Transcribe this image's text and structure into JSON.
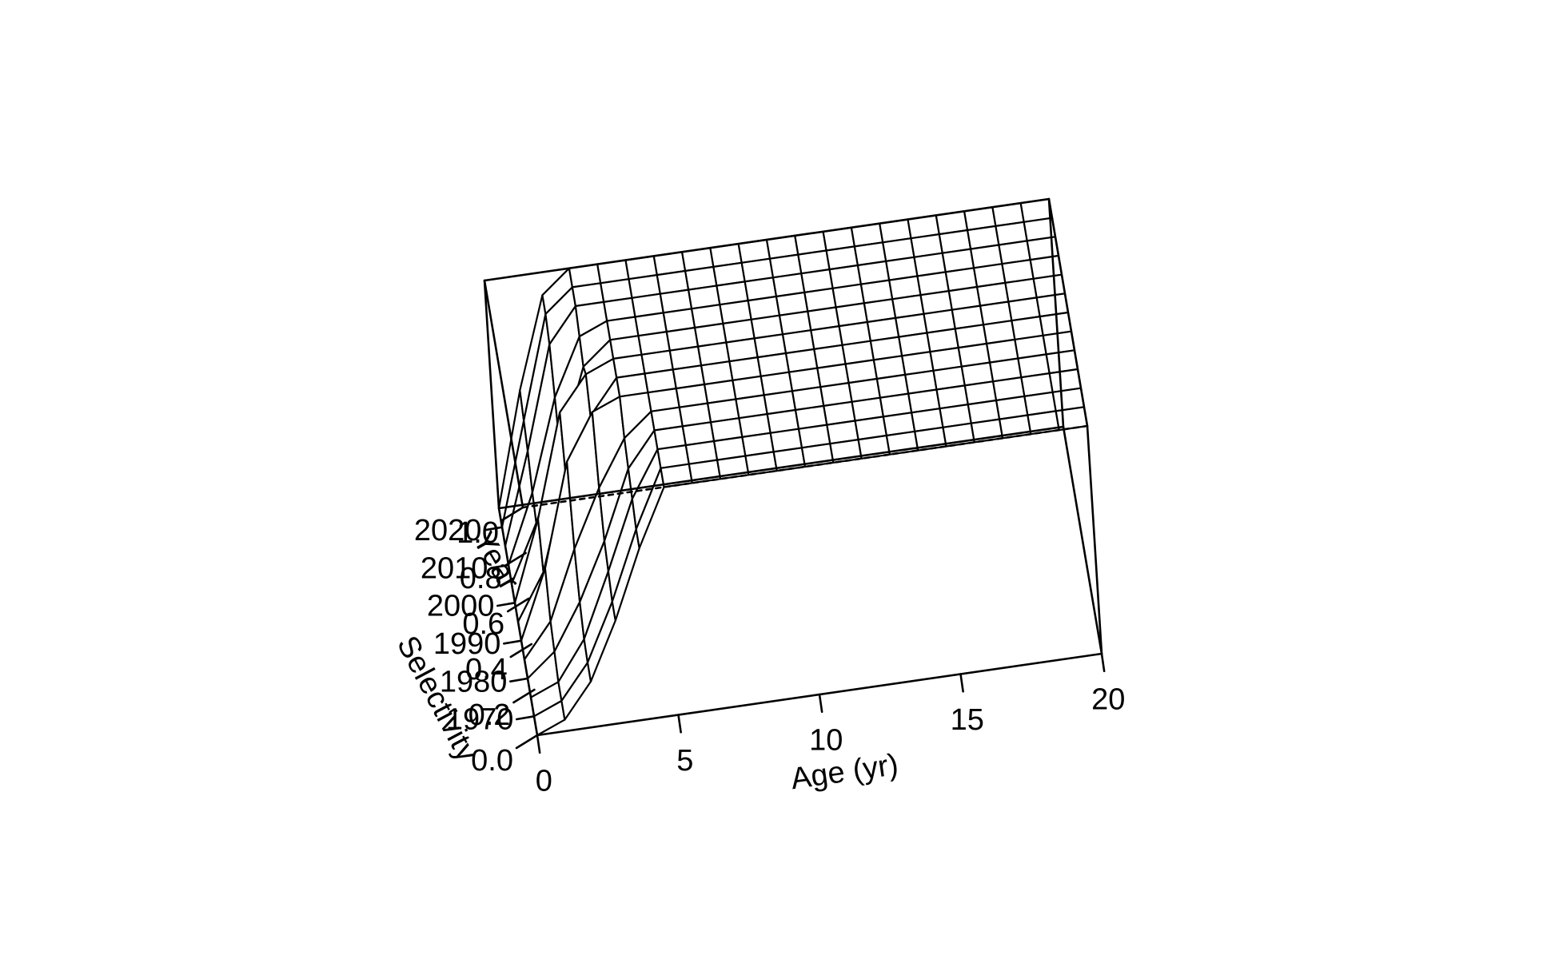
{
  "chart_data": {
    "type": "surface",
    "title": "",
    "x_axis": {
      "label": "Age (yr)",
      "range": [
        0,
        20
      ],
      "ticks": [
        0,
        5,
        10,
        15,
        20
      ],
      "tick_labels": [
        "0",
        "5",
        "10",
        "15",
        "20"
      ]
    },
    "y_axis": {
      "label": "Year",
      "range": [
        1965,
        2025
      ],
      "ticks": [
        1970,
        1980,
        1990,
        2000,
        2010,
        2020
      ],
      "tick_labels": [
        "1970",
        "1980",
        "1990",
        "2000",
        "2010",
        "2020"
      ]
    },
    "z_axis": {
      "label": "Selectivity",
      "range": [
        0,
        1
      ],
      "ticks": [
        0,
        0.2,
        0.4,
        0.6,
        0.8,
        1
      ],
      "tick_labels": [
        "0.0",
        "0.2",
        "0.4",
        "0.6",
        "0.8",
        "1.0"
      ]
    },
    "ages": [
      0,
      1,
      2,
      3,
      4,
      5,
      6,
      7,
      8,
      9,
      10,
      11,
      12,
      13,
      14,
      15,
      16,
      17,
      18,
      19,
      20
    ],
    "years": [
      1965,
      1970,
      1975,
      1980,
      1985,
      1990,
      1995,
      2000,
      2005,
      2010,
      2015,
      2020,
      2025
    ],
    "selectivity_by_year": [
      [
        0.0,
        0.05,
        0.2,
        0.45,
        0.75,
        1.0,
        1.0,
        1.0,
        1.0,
        1.0,
        1.0,
        1.0,
        1.0,
        1.0,
        1.0,
        1.0,
        1.0,
        1.0,
        1.0,
        1.0,
        1.0
      ],
      [
        0.0,
        0.05,
        0.2,
        0.45,
        0.75,
        1.0,
        1.0,
        1.0,
        1.0,
        1.0,
        1.0,
        1.0,
        1.0,
        1.0,
        1.0,
        1.0,
        1.0,
        1.0,
        1.0,
        1.0,
        1.0
      ],
      [
        0.0,
        0.05,
        0.22,
        0.5,
        0.8,
        1.0,
        1.0,
        1.0,
        1.0,
        1.0,
        1.0,
        1.0,
        1.0,
        1.0,
        1.0,
        1.0,
        1.0,
        1.0,
        1.0,
        1.0,
        1.0
      ],
      [
        0.0,
        0.1,
        0.3,
        0.55,
        0.85,
        1.0,
        1.0,
        1.0,
        1.0,
        1.0,
        1.0,
        1.0,
        1.0,
        1.0,
        1.0,
        1.0,
        1.0,
        1.0,
        1.0,
        1.0,
        1.0
      ],
      [
        0.0,
        0.15,
        0.45,
        0.7,
        0.9,
        1.0,
        1.0,
        1.0,
        1.0,
        1.0,
        1.0,
        1.0,
        1.0,
        1.0,
        1.0,
        1.0,
        1.0,
        1.0,
        1.0,
        1.0,
        1.0
      ],
      [
        0.0,
        0.3,
        0.75,
        0.95,
        1.0,
        1.0,
        1.0,
        1.0,
        1.0,
        1.0,
        1.0,
        1.0,
        1.0,
        1.0,
        1.0,
        1.0,
        1.0,
        1.0,
        1.0,
        1.0,
        1.0
      ],
      [
        0.0,
        0.2,
        0.6,
        0.85,
        1.0,
        1.0,
        1.0,
        1.0,
        1.0,
        1.0,
        1.0,
        1.0,
        1.0,
        1.0,
        1.0,
        1.0,
        1.0,
        1.0,
        1.0,
        1.0,
        1.0
      ],
      [
        0.0,
        0.35,
        0.8,
        0.95,
        1.0,
        1.0,
        1.0,
        1.0,
        1.0,
        1.0,
        1.0,
        1.0,
        1.0,
        1.0,
        1.0,
        1.0,
        1.0,
        1.0,
        1.0,
        1.0,
        1.0
      ],
      [
        0.0,
        0.25,
        0.55,
        0.9,
        1.0,
        1.0,
        1.0,
        1.0,
        1.0,
        1.0,
        1.0,
        1.0,
        1.0,
        1.0,
        1.0,
        1.0,
        1.0,
        1.0,
        1.0,
        1.0,
        1.0
      ],
      [
        0.0,
        0.3,
        0.7,
        0.95,
        1.0,
        1.0,
        1.0,
        1.0,
        1.0,
        1.0,
        1.0,
        1.0,
        1.0,
        1.0,
        1.0,
        1.0,
        1.0,
        1.0,
        1.0,
        1.0,
        1.0
      ],
      [
        0.0,
        0.4,
        0.85,
        1.0,
        1.0,
        1.0,
        1.0,
        1.0,
        1.0,
        1.0,
        1.0,
        1.0,
        1.0,
        1.0,
        1.0,
        1.0,
        1.0,
        1.0,
        1.0,
        1.0,
        1.0
      ],
      [
        0.0,
        0.45,
        0.9,
        1.0,
        1.0,
        1.0,
        1.0,
        1.0,
        1.0,
        1.0,
        1.0,
        1.0,
        1.0,
        1.0,
        1.0,
        1.0,
        1.0,
        1.0,
        1.0,
        1.0,
        1.0
      ],
      [
        0.0,
        0.5,
        0.9,
        1.0,
        1.0,
        1.0,
        1.0,
        1.0,
        1.0,
        1.0,
        1.0,
        1.0,
        1.0,
        1.0,
        1.0,
        1.0,
        1.0,
        1.0,
        1.0,
        1.0,
        1.0
      ]
    ],
    "grid": false,
    "legend": "none"
  },
  "colors": {
    "line": "#000000",
    "surface_fill": "#ffffff",
    "background": "#ffffff"
  }
}
